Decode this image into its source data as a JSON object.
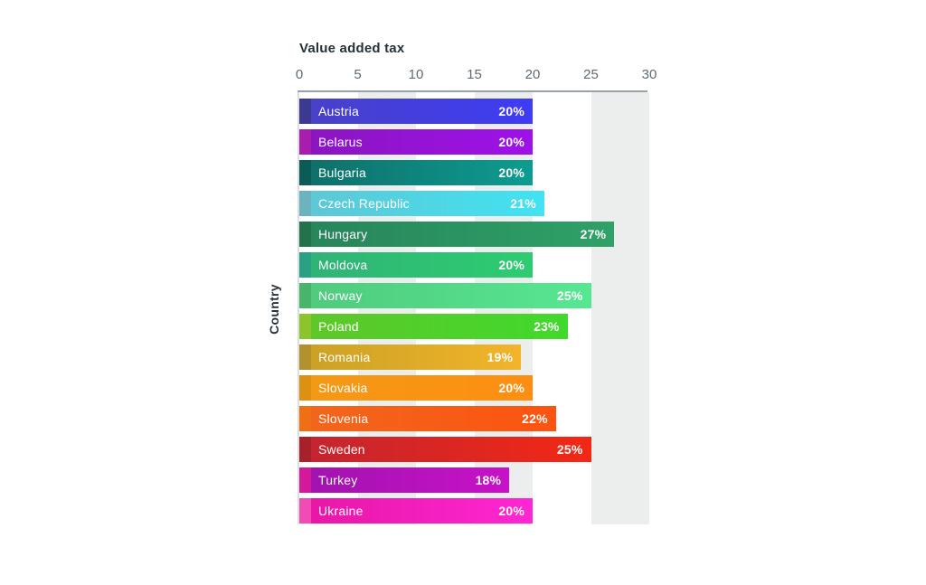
{
  "page": {
    "background": "#ffffff"
  },
  "chart_data": {
    "type": "bar",
    "orientation": "horizontal",
    "title": "Value added tax",
    "xlabel": "Value added tax",
    "ylabel": "Country",
    "xlim": [
      0,
      30
    ],
    "x_ticks": [
      "0",
      "5",
      "10",
      "15",
      "20",
      "25",
      "30"
    ],
    "grid_bands": [
      [
        5,
        10
      ],
      [
        15,
        20
      ],
      [
        25,
        30
      ]
    ],
    "band_color": "#eceeee",
    "axis_line_color": "#98a2a8",
    "tick_color": "#5d6b73",
    "bar_text_color": "#ffffff",
    "categories": [
      "Austria",
      "Belarus",
      "Bulgaria",
      "Czech Republic",
      "Hungary",
      "Moldova",
      "Norway",
      "Poland",
      "Romania",
      "Slovakia",
      "Slovenia",
      "Sweden",
      "Turkey",
      "Ukraine"
    ],
    "values": [
      20,
      20,
      20,
      21,
      27,
      20,
      25,
      23,
      19,
      20,
      22,
      25,
      18,
      20
    ],
    "value_labels": [
      "20%",
      "20%",
      "20%",
      "21%",
      "27%",
      "20%",
      "25%",
      "23%",
      "19%",
      "20%",
      "22%",
      "25%",
      "18%",
      "20%"
    ],
    "colors": [
      {
        "cap": "#3c3a90",
        "from": "#4a41c6",
        "to": "#3e3cf4"
      },
      {
        "cap": "#a81cae",
        "from": "#8a16bd",
        "to": "#9e11e9"
      },
      {
        "cap": "#0b5b56",
        "from": "#0e6e68",
        "to": "#0e9c90"
      },
      {
        "cap": "#6cb3c0",
        "from": "#5fc6d4",
        "to": "#41e3f2"
      },
      {
        "cap": "#23724c",
        "from": "#27845b",
        "to": "#2fa167"
      },
      {
        "cap": "#2ba183",
        "from": "#30b277",
        "to": "#2ecc71"
      },
      {
        "cap": "#49b56b",
        "from": "#4fca7e",
        "to": "#57e791"
      },
      {
        "cap": "#8bc42c",
        "from": "#60c62a",
        "to": "#40d92c"
      },
      {
        "cap": "#b2922c",
        "from": "#c9a125",
        "to": "#f2b42a"
      },
      {
        "cap": "#dd9110",
        "from": "#f39a16",
        "to": "#fe8e11"
      },
      {
        "cap": "#ee7013",
        "from": "#f2671c",
        "to": "#fb5411"
      },
      {
        "cap": "#a62129",
        "from": "#c22531",
        "to": "#f22814"
      },
      {
        "cap": "#d4189b",
        "from": "#a013ae",
        "to": "#c811c8"
      },
      {
        "cap": "#f04cb3",
        "from": "#e716a5",
        "to": "#fe27d3"
      }
    ]
  }
}
